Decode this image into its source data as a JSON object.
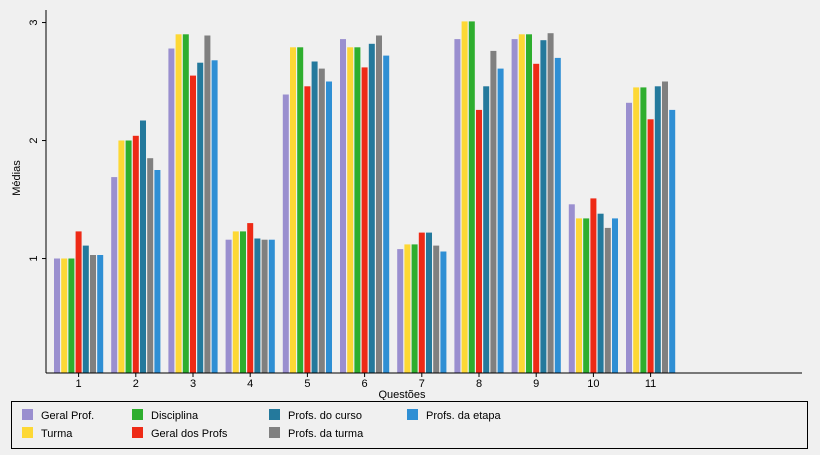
{
  "chart_data": {
    "type": "bar",
    "xlabel": "Questões",
    "ylabel": "Médias",
    "categories": [
      "1",
      "2",
      "3",
      "4",
      "5",
      "6",
      "7",
      "8",
      "9",
      "10",
      "11"
    ],
    "yticks": [
      "1",
      "2",
      "3"
    ],
    "ylim": [
      0.03,
      3.03
    ],
    "grid": false,
    "legend_position": "bottom",
    "series": [
      {
        "name": "Geral Prof.",
        "color": "#9a8fcf",
        "values": [
          1.0,
          1.69,
          2.78,
          1.16,
          2.39,
          2.86,
          1.08,
          2.86,
          2.86,
          1.46,
          2.32
        ]
      },
      {
        "name": "Turma",
        "color": "#fdd835",
        "values": [
          1.0,
          2.0,
          2.9,
          1.23,
          2.79,
          2.79,
          1.12,
          3.01,
          2.9,
          1.34,
          2.45
        ]
      },
      {
        "name": "Disciplina",
        "color": "#2eae2e",
        "values": [
          1.0,
          2.0,
          2.9,
          1.23,
          2.79,
          2.79,
          1.12,
          3.01,
          2.9,
          1.34,
          2.45
        ]
      },
      {
        "name": "Geral dos Profs",
        "color": "#ee2a16",
        "values": [
          1.23,
          2.04,
          2.55,
          1.3,
          2.46,
          2.62,
          1.22,
          2.26,
          2.65,
          1.51,
          2.18
        ]
      },
      {
        "name": "Profs. do curso",
        "color": "#24799c",
        "values": [
          1.11,
          2.17,
          2.66,
          1.17,
          2.67,
          2.82,
          1.22,
          2.46,
          2.85,
          1.38,
          2.46
        ]
      },
      {
        "name": "Profs. da turma",
        "color": "#808080",
        "values": [
          1.03,
          1.85,
          2.89,
          1.16,
          2.61,
          2.89,
          1.11,
          2.76,
          2.91,
          1.26,
          2.5
        ]
      },
      {
        "name": "Profs. da etapa",
        "color": "#2f8fd4",
        "values": [
          1.03,
          1.75,
          2.68,
          1.16,
          2.5,
          2.72,
          1.06,
          2.61,
          2.7,
          1.34,
          2.26
        ]
      }
    ]
  }
}
